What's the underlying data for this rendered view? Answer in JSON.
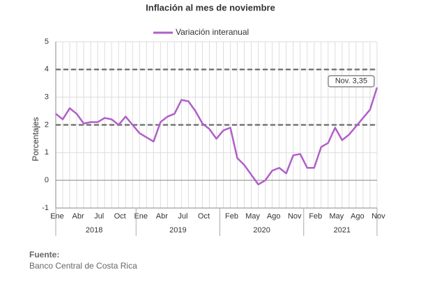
{
  "chart_data": {
    "type": "line",
    "title": "Inflación al mes de noviembre",
    "y_label": "Porcentajes",
    "categories": [
      "Ene",
      null,
      null,
      "Abr",
      null,
      null,
      "Jul",
      null,
      null,
      "Oct",
      null,
      null,
      "Ene",
      null,
      null,
      "Abr",
      null,
      null,
      "Jul",
      null,
      null,
      "Oct",
      null,
      null,
      null,
      "Feb",
      null,
      null,
      "May",
      null,
      null,
      "Ago",
      null,
      null,
      "Nov",
      null,
      null,
      "Feb",
      null,
      null,
      "May",
      null,
      null,
      "Ago",
      null,
      null,
      "Nov"
    ],
    "years": [
      "2018",
      "2019",
      "2020",
      "2021"
    ],
    "series": [
      {
        "name": "Variación interanual",
        "color": "#b05fc9",
        "values": [
          2.4,
          2.2,
          2.6,
          2.4,
          2.05,
          2.1,
          2.1,
          2.25,
          2.2,
          2.0,
          2.3,
          2.0,
          1.7,
          1.55,
          1.4,
          2.1,
          2.3,
          2.4,
          2.9,
          2.85,
          2.5,
          2.05,
          1.85,
          1.5,
          1.8,
          1.9,
          0.8,
          0.55,
          0.2,
          -0.15,
          0.0,
          0.35,
          0.45,
          0.25,
          0.9,
          0.95,
          0.45,
          0.45,
          1.2,
          1.35,
          1.9,
          1.45,
          1.65,
          1.95,
          2.25,
          2.55,
          3.35
        ]
      }
    ],
    "annotation": "Nov. 3,35",
    "reference_lines": [
      2,
      4
    ],
    "ylim": [
      -1,
      5
    ],
    "yticks": [
      -1,
      0,
      1,
      2,
      3,
      4,
      5
    ],
    "grid": true,
    "source_label": "Fuente:",
    "source": "Banco Central de Costa Rica"
  }
}
